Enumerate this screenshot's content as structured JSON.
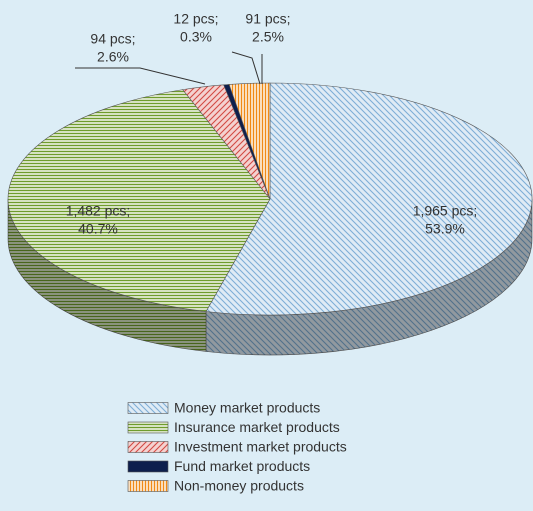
{
  "chart_data": {
    "type": "pie3d",
    "categories": [
      "Money market products",
      "Insurance market products",
      "Investment market products",
      "Fund market products",
      "Non-money products"
    ],
    "values": [
      1965,
      1482,
      94,
      12,
      91
    ],
    "value_labels": [
      "1,965 pcs;",
      "1,482 pcs;",
      "94 pcs;",
      "12 pcs;",
      "91 pcs;"
    ],
    "percents": [
      53.9,
      40.7,
      2.6,
      0.3,
      2.5
    ],
    "percent_labels": [
      "53.9%",
      "40.7%",
      "2.6%",
      "0.3%",
      "2.5%"
    ],
    "colors": [
      "#7eaed6",
      "#6f9c2c",
      "#d24a44",
      "#0e1f4d",
      "#f08a16"
    ],
    "hatch": [
      "backward-diagonal",
      "horizontal",
      "forward-diagonal",
      "solid",
      "vertical"
    ],
    "legend": "bottom"
  }
}
